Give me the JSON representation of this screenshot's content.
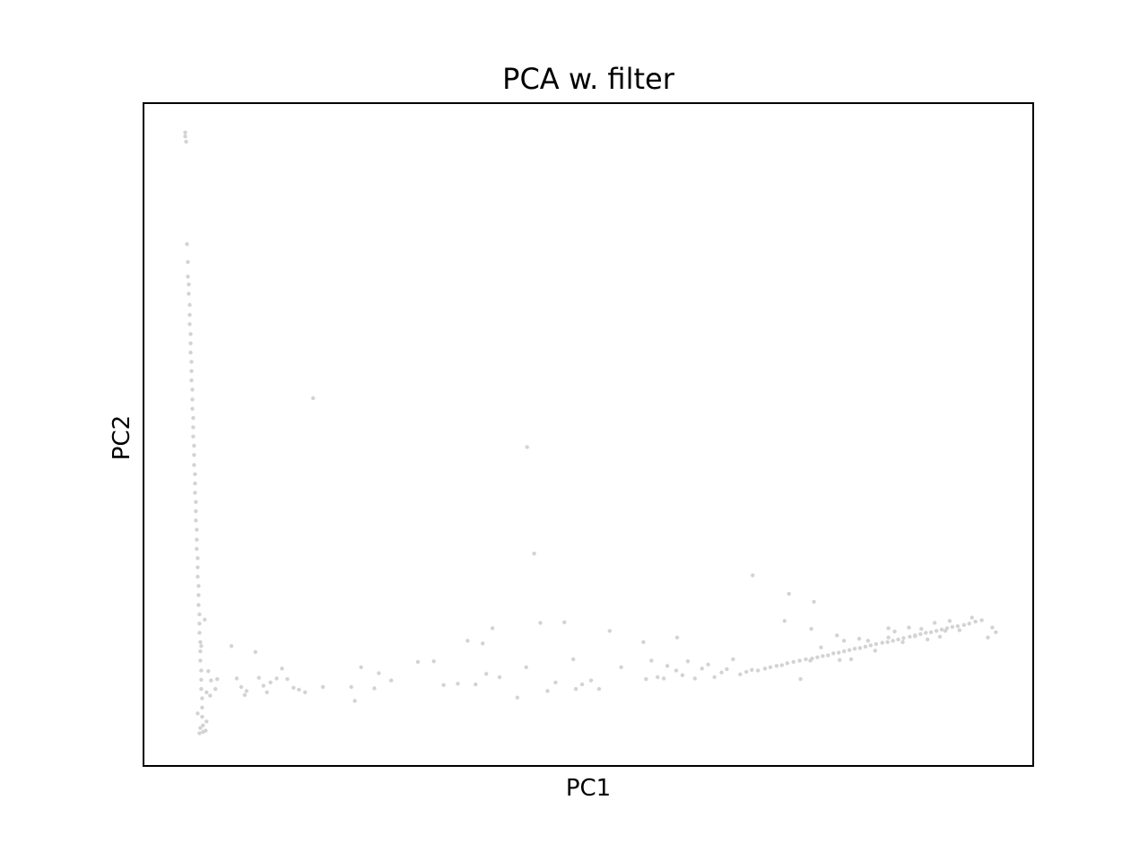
{
  "chart_data": {
    "type": "scatter",
    "title": "PCA w. filter",
    "xlabel": "PC1",
    "ylabel": "PC2",
    "xlim": [
      0,
      100
    ],
    "ylim": [
      0,
      100
    ],
    "ticks": "none",
    "grid": false,
    "legend": "none",
    "point_color": "#d3d3d3",
    "series": [
      {
        "points": [
          [
            4.6,
            95.7
          ],
          [
            4.6,
            95.1
          ],
          [
            4.7,
            94.3
          ],
          [
            4.8,
            78.8
          ],
          [
            4.9,
            76.1
          ],
          [
            4.9,
            73.9
          ],
          [
            5.0,
            72.7
          ],
          [
            5.0,
            71.3
          ],
          [
            5.1,
            69.6
          ],
          [
            5.1,
            68.1
          ],
          [
            5.1,
            66.7
          ],
          [
            5.2,
            65.2
          ],
          [
            5.2,
            63.8
          ],
          [
            5.2,
            62.4
          ],
          [
            5.3,
            61.0
          ],
          [
            5.3,
            59.6
          ],
          [
            5.3,
            58.2
          ],
          [
            5.4,
            56.8
          ],
          [
            5.4,
            55.3
          ],
          [
            5.4,
            53.9
          ],
          [
            5.5,
            52.5
          ],
          [
            5.5,
            51.1
          ],
          [
            5.5,
            49.7
          ],
          [
            5.6,
            48.3
          ],
          [
            5.6,
            46.9
          ],
          [
            5.6,
            45.4
          ],
          [
            5.7,
            44.0
          ],
          [
            5.7,
            42.6
          ],
          [
            5.7,
            41.2
          ],
          [
            5.8,
            39.8
          ],
          [
            5.8,
            38.4
          ],
          [
            5.8,
            37.0
          ],
          [
            5.9,
            35.6
          ],
          [
            5.9,
            34.1
          ],
          [
            5.9,
            32.7
          ],
          [
            6.0,
            31.3
          ],
          [
            6.0,
            29.9
          ],
          [
            6.0,
            28.5
          ],
          [
            6.1,
            27.1
          ],
          [
            6.1,
            25.7
          ],
          [
            6.1,
            24.2
          ],
          [
            6.2,
            22.8
          ],
          [
            6.2,
            21.4
          ],
          [
            6.2,
            20.0
          ],
          [
            6.3,
            18.6
          ],
          [
            6.3,
            17.2
          ],
          [
            6.3,
            15.8
          ],
          [
            6.4,
            14.3
          ],
          [
            6.4,
            12.9
          ],
          [
            6.4,
            11.5
          ],
          [
            6.5,
            10.1
          ],
          [
            6.5,
            8.7
          ],
          [
            6.5,
            7.3
          ],
          [
            6.6,
            6.0
          ],
          [
            6.6,
            5.0
          ],
          [
            6.2,
            4.8
          ],
          [
            6.9,
            5.2
          ],
          [
            6.3,
            5.6
          ],
          [
            7.0,
            6.6
          ],
          [
            6.0,
            7.8
          ],
          [
            6.8,
            22.0
          ],
          [
            6.4,
            18.0
          ],
          [
            7.2,
            14.2
          ],
          [
            7.5,
            12.8
          ],
          [
            8.2,
            13.0
          ],
          [
            7.0,
            11.0
          ],
          [
            8.0,
            11.5
          ],
          [
            7.4,
            10.5
          ],
          [
            9.8,
            18.0
          ],
          [
            10.4,
            13.1
          ],
          [
            10.9,
            11.8
          ],
          [
            11.3,
            10.6
          ],
          [
            11.5,
            11.2
          ],
          [
            12.5,
            17.1
          ],
          [
            12.9,
            13.2
          ],
          [
            13.4,
            12.0
          ],
          [
            13.8,
            11.0
          ],
          [
            14.2,
            12.5
          ],
          [
            14.9,
            13.1
          ],
          [
            15.5,
            14.6
          ],
          [
            16.1,
            13.0
          ],
          [
            16.8,
            11.7
          ],
          [
            17.4,
            11.4
          ],
          [
            18.1,
            11.0
          ],
          [
            19.0,
            55.5
          ],
          [
            20.1,
            11.8
          ],
          [
            23.3,
            11.8
          ],
          [
            23.7,
            9.7
          ],
          [
            24.4,
            14.8
          ],
          [
            25.9,
            11.6
          ],
          [
            26.4,
            13.9
          ],
          [
            27.8,
            12.8
          ],
          [
            30.8,
            15.6
          ],
          [
            32.6,
            15.7
          ],
          [
            33.7,
            12.1
          ],
          [
            35.3,
            12.3
          ],
          [
            36.4,
            18.8
          ],
          [
            37.3,
            12.2
          ],
          [
            38.1,
            18.4
          ],
          [
            38.5,
            13.8
          ],
          [
            39.2,
            20.7
          ],
          [
            40.0,
            13.3
          ],
          [
            42.0,
            10.2
          ],
          [
            43.1,
            48.1
          ],
          [
            43.0,
            14.8
          ],
          [
            43.9,
            32.0
          ],
          [
            44.6,
            21.5
          ],
          [
            45.4,
            11.2
          ],
          [
            46.3,
            12.5
          ],
          [
            47.3,
            21.6
          ],
          [
            48.3,
            16.0
          ],
          [
            48.6,
            11.5
          ],
          [
            49.3,
            12.2
          ],
          [
            50.3,
            12.8
          ],
          [
            51.2,
            11.5
          ],
          [
            52.4,
            20.3
          ],
          [
            53.7,
            14.8
          ],
          [
            56.2,
            18.6
          ],
          [
            56.5,
            13.0
          ],
          [
            57.1,
            15.8
          ],
          [
            57.8,
            13.3
          ],
          [
            58.5,
            13.1
          ],
          [
            60.0,
            19.3
          ],
          [
            58.9,
            15.0
          ],
          [
            59.9,
            14.3
          ],
          [
            60.6,
            13.6
          ],
          [
            61.2,
            15.7
          ],
          [
            62.0,
            13.1
          ],
          [
            62.8,
            14.6
          ],
          [
            63.5,
            15.2
          ],
          [
            64.2,
            13.3
          ],
          [
            65.0,
            14.0
          ],
          [
            65.6,
            14.5
          ],
          [
            66.3,
            16.0
          ],
          [
            67.1,
            13.7
          ],
          [
            67.8,
            14.1
          ],
          [
            68.4,
            14.4
          ],
          [
            69.1,
            14.3
          ],
          [
            69.9,
            14.6
          ],
          [
            70.5,
            14.8
          ],
          [
            71.2,
            15.0
          ],
          [
            71.8,
            15.1
          ],
          [
            72.4,
            15.4
          ],
          [
            73.1,
            15.6
          ],
          [
            73.8,
            15.8
          ],
          [
            74.5,
            16.0
          ],
          [
            75.2,
            16.1
          ],
          [
            75.8,
            16.3
          ],
          [
            76.4,
            16.5
          ],
          [
            77.0,
            16.6
          ],
          [
            77.6,
            16.9
          ],
          [
            78.2,
            17.0
          ],
          [
            78.8,
            17.2
          ],
          [
            79.4,
            17.4
          ],
          [
            80.0,
            17.6
          ],
          [
            80.6,
            17.7
          ],
          [
            81.2,
            17.9
          ],
          [
            81.8,
            18.1
          ],
          [
            82.4,
            18.3
          ],
          [
            83.1,
            18.5
          ],
          [
            83.7,
            18.6
          ],
          [
            84.3,
            18.8
          ],
          [
            84.9,
            19.0
          ],
          [
            85.5,
            19.2
          ],
          [
            86.2,
            19.4
          ],
          [
            86.8,
            19.6
          ],
          [
            87.4,
            19.8
          ],
          [
            88.0,
            20.0
          ],
          [
            88.6,
            20.1
          ],
          [
            89.2,
            20.3
          ],
          [
            89.8,
            20.5
          ],
          [
            90.4,
            20.7
          ],
          [
            91.0,
            20.9
          ],
          [
            91.6,
            21.0
          ],
          [
            92.3,
            21.2
          ],
          [
            92.9,
            21.4
          ],
          [
            93.6,
            21.7
          ],
          [
            94.3,
            21.9
          ],
          [
            73.9,
            13.0
          ],
          [
            75.0,
            15.8
          ],
          [
            76.2,
            17.8
          ],
          [
            78.3,
            15.9
          ],
          [
            79.6,
            16.0
          ],
          [
            80.5,
            19.1
          ],
          [
            81.5,
            18.8
          ],
          [
            82.3,
            17.3
          ],
          [
            83.8,
            19.3
          ],
          [
            84.5,
            20.2
          ],
          [
            85.4,
            18.6
          ],
          [
            86.1,
            20.8
          ],
          [
            87.5,
            20.6
          ],
          [
            88.2,
            19.0
          ],
          [
            89.0,
            21.5
          ],
          [
            89.6,
            19.4
          ],
          [
            90.7,
            21.8
          ],
          [
            91.8,
            20.4
          ],
          [
            93.2,
            22.3
          ],
          [
            95.5,
            20.8
          ],
          [
            68.5,
            28.7
          ],
          [
            72.6,
            25.9
          ],
          [
            72.1,
            21.8
          ],
          [
            75.4,
            24.7
          ],
          [
            75.1,
            20.6
          ],
          [
            78.8,
            18.8
          ],
          [
            78.0,
            19.6
          ],
          [
            83.8,
            20.7
          ],
          [
            86.8,
            19.5
          ],
          [
            90.2,
            20.3
          ],
          [
            95.9,
            20.1
          ],
          [
            95.0,
            19.3
          ]
        ]
      }
    ]
  }
}
